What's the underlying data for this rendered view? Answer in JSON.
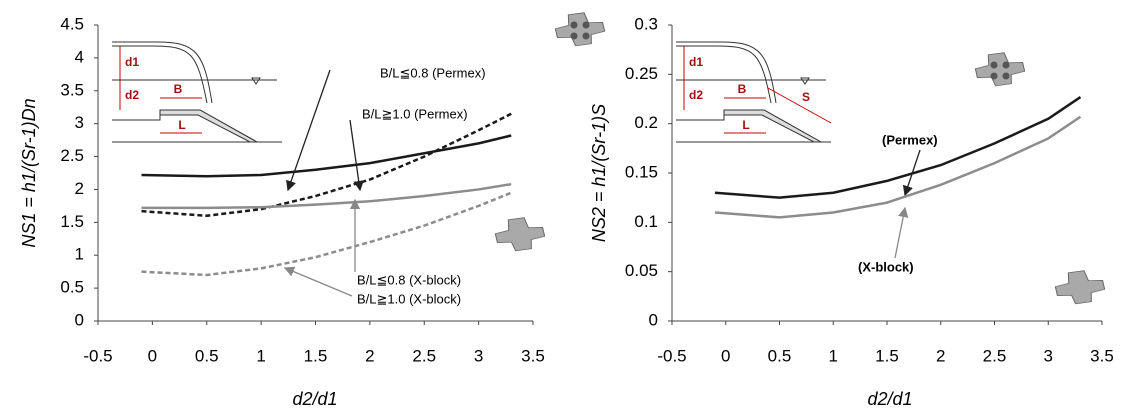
{
  "chart_data": [
    {
      "type": "line",
      "xlabel": "d2/d1",
      "ylabel": "NS1 = h1/(Sr-1)Dn",
      "x": [
        -0.1,
        0.5,
        1,
        1.5,
        2,
        2.5,
        3,
        3.3
      ],
      "series": [
        {
          "name": "B/L≦0.8 (Permex)",
          "color": "#1a1a1a",
          "dash": false,
          "values": [
            2.22,
            2.2,
            2.22,
            2.3,
            2.4,
            2.55,
            2.7,
            2.82
          ]
        },
        {
          "name": "B/L≧1.0 (Permex)",
          "color": "#1a1a1a",
          "dash": true,
          "values": [
            1.67,
            1.6,
            1.7,
            1.9,
            2.15,
            2.5,
            2.9,
            3.15
          ]
        },
        {
          "name": "B/L≦0.8 (X-block)",
          "color": "#8c8c8c",
          "dash": false,
          "values": [
            1.72,
            1.72,
            1.73,
            1.77,
            1.82,
            1.9,
            2.0,
            2.08
          ]
        },
        {
          "name": "B/L≧1.0 (X-block)",
          "color": "#8c8c8c",
          "dash": true,
          "values": [
            0.75,
            0.7,
            0.8,
            0.97,
            1.2,
            1.45,
            1.75,
            1.95
          ]
        }
      ],
      "xlim": [
        -0.5,
        3.5
      ],
      "xticks": [
        -0.5,
        0,
        0.5,
        1,
        1.5,
        2,
        2.5,
        3,
        3.5
      ],
      "ylim": [
        0,
        4.5
      ],
      "yticks": [
        0,
        0.5,
        1,
        1.5,
        2,
        2.5,
        3,
        3.5,
        4,
        4.5
      ],
      "inset_labels": [
        "d1",
        "d2",
        "B",
        "L"
      ]
    },
    {
      "type": "line",
      "xlabel": "d2/d1",
      "ylabel": "NS2 = h1/(Sr-1)S",
      "x": [
        -0.1,
        0.5,
        1,
        1.5,
        2,
        2.5,
        3,
        3.3
      ],
      "series": [
        {
          "name": "(Permex)",
          "color": "#1a1a1a",
          "dash": false,
          "values": [
            0.13,
            0.125,
            0.13,
            0.142,
            0.158,
            0.18,
            0.205,
            0.227
          ]
        },
        {
          "name": "(X-block)",
          "color": "#8c8c8c",
          "dash": false,
          "values": [
            0.11,
            0.105,
            0.11,
            0.12,
            0.138,
            0.16,
            0.185,
            0.207
          ]
        }
      ],
      "xlim": [
        -0.5,
        3.5
      ],
      "xticks": [
        -0.5,
        0,
        0.5,
        1,
        1.5,
        2,
        2.5,
        3,
        3.5
      ],
      "ylim": [
        0,
        0.3
      ],
      "yticks": [
        0,
        0.05,
        0.1,
        0.15,
        0.2,
        0.25,
        0.3
      ],
      "inset_labels": [
        "d1",
        "d2",
        "B",
        "L",
        "S"
      ]
    }
  ]
}
